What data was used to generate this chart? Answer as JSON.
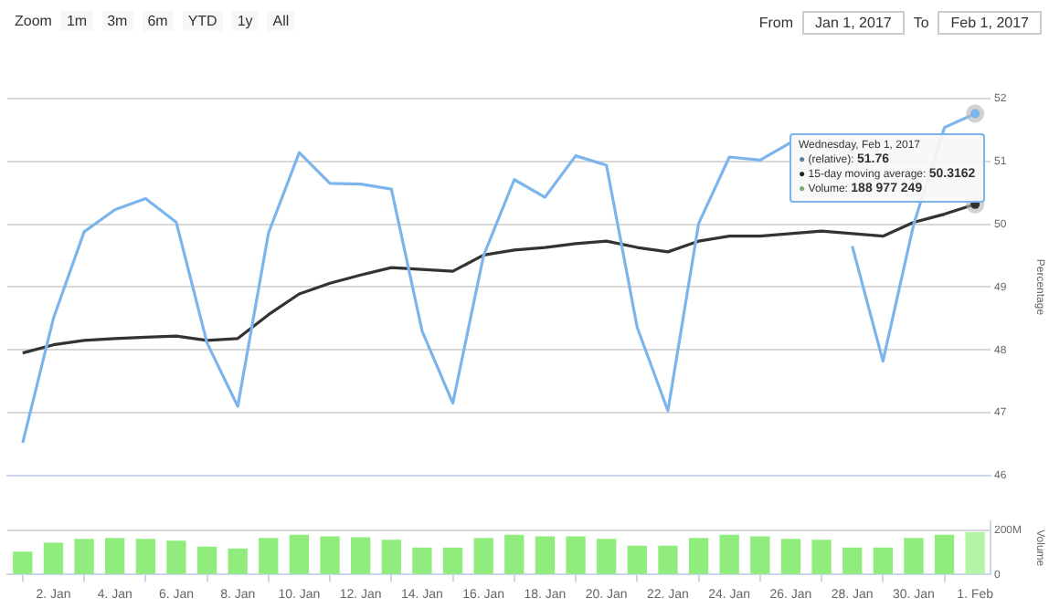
{
  "chart_data": [
    {
      "type": "line",
      "ylabel": "Percentage",
      "x": [
        "2017-01-01",
        "2017-01-02",
        "2017-01-03",
        "2017-01-04",
        "2017-01-05",
        "2017-01-06",
        "2017-01-07",
        "2017-01-08",
        "2017-01-09",
        "2017-01-10",
        "2017-01-11",
        "2017-01-12",
        "2017-01-13",
        "2017-01-14",
        "2017-01-15",
        "2017-01-16",
        "2017-01-17",
        "2017-01-18",
        "2017-01-19",
        "2017-01-20",
        "2017-01-21",
        "2017-01-22",
        "2017-01-23",
        "2017-01-24",
        "2017-01-25",
        "2017-01-26",
        "2017-01-27",
        "2017-01-28",
        "2017-01-29",
        "2017-01-30",
        "2017-01-31",
        "2017-02-01"
      ],
      "series": [
        {
          "color": "#7cb5ec",
          "values": [
            46.52,
            48.5,
            49.88,
            50.23,
            50.41,
            50.03,
            48.11,
            47.1,
            49.86,
            51.14,
            50.65,
            50.64,
            50.56,
            48.3,
            47.15,
            49.5,
            50.71,
            50.43,
            51.09,
            50.94,
            48.36,
            47.03,
            50.01,
            51.07,
            51.02,
            51.3,
            null,
            49.65,
            47.82,
            50.0,
            51.54,
            51.76
          ]
        },
        {
          "color": "#333333",
          "values": [
            47.95,
            48.08,
            48.15,
            48.18,
            48.2,
            48.22,
            48.15,
            48.18,
            48.56,
            48.89,
            49.06,
            49.19,
            49.31,
            49.28,
            49.25,
            49.51,
            49.59,
            49.63,
            49.69,
            49.73,
            49.63,
            49.56,
            49.73,
            49.81,
            49.81,
            49.85,
            49.89,
            49.85,
            49.81,
            50.03,
            50.16,
            50.3162
          ]
        }
      ],
      "xlim": [
        "2016-12-31T12:00",
        "2017-02-01T12:00"
      ],
      "ylim": [
        46,
        52
      ],
      "yticks": [
        46,
        47,
        48,
        49,
        50,
        51,
        52
      ],
      "grid": "y",
      "marker": "none",
      "line_style": "solid",
      "tick_labels": "y",
      "annotations": [
        "Zoom",
        "1m",
        "3m",
        "6m",
        "YTD",
        "1y",
        "All",
        "From",
        "Jan 1, 2017",
        "To",
        "Feb 1, 2017",
        "Wednesday, Feb 1, 2017",
        "● (relative): 51.76",
        "● 15-day moving average: 50.3162"
      ]
    },
    {
      "type": "bar",
      "ylabel": "Volume",
      "x": [
        "2017-01-01",
        "2017-01-02",
        "2017-01-03",
        "2017-01-04",
        "2017-01-05",
        "2017-01-06",
        "2017-01-07",
        "2017-01-08",
        "2017-01-09",
        "2017-01-10",
        "2017-01-11",
        "2017-01-12",
        "2017-01-13",
        "2017-01-14",
        "2017-01-15",
        "2017-01-16",
        "2017-01-17",
        "2017-01-18",
        "2017-01-19",
        "2017-01-20",
        "2017-01-21",
        "2017-01-22",
        "2017-01-23",
        "2017-01-24",
        "2017-01-25",
        "2017-01-26",
        "2017-01-27",
        "2017-01-28",
        "2017-01-29",
        "2017-01-30",
        "2017-01-31",
        "2017-02-01"
      ],
      "colors": [
        "#90ed7d",
        "#90ed7d",
        "#90ed7d",
        "#90ed7d",
        "#90ed7d",
        "#90ed7d",
        "#90ed7d",
        "#90ed7d",
        "#90ed7d",
        "#90ed7d",
        "#90ed7d",
        "#90ed7d",
        "#90ed7d",
        "#90ed7d",
        "#90ed7d",
        "#90ed7d",
        "#90ed7d",
        "#90ed7d",
        "#90ed7d",
        "#90ed7d",
        "#90ed7d",
        "#90ed7d",
        "#90ed7d",
        "#90ed7d",
        "#90ed7d",
        "#90ed7d",
        "#90ed7d",
        "#90ed7d",
        "#90ed7d",
        "#90ed7d",
        "#90ed7d",
        "#b3f5a5"
      ],
      "values": [
        101000000,
        141000000,
        158000000,
        163000000,
        158000000,
        150000000,
        123000000,
        115000000,
        163000000,
        177000000,
        170000000,
        166000000,
        154000000,
        119000000,
        119000000,
        163000000,
        177000000,
        170000000,
        170000000,
        158000000,
        127000000,
        127000000,
        163000000,
        177000000,
        170000000,
        158000000,
        154000000,
        119000000,
        119000000,
        163000000,
        177000000,
        188977249
      ],
      "xlim": [
        "2016-12-31T12:00",
        "2017-02-01T12:00"
      ],
      "xticks": [
        {
          "value": "2017-01-02",
          "label": "2. Jan"
        },
        {
          "value": "2017-01-04",
          "label": "4. Jan"
        },
        {
          "value": "2017-01-06",
          "label": "6. Jan"
        },
        {
          "value": "2017-01-08",
          "label": "8. Jan"
        },
        {
          "value": "2017-01-10",
          "label": "10. Jan"
        },
        {
          "value": "2017-01-12",
          "label": "12. Jan"
        },
        {
          "value": "2017-01-14",
          "label": "14. Jan"
        },
        {
          "value": "2017-01-16",
          "label": "16. Jan"
        },
        {
          "value": "2017-01-18",
          "label": "18. Jan"
        },
        {
          "value": "2017-01-20",
          "label": "20. Jan"
        },
        {
          "value": "2017-01-22",
          "label": "22. Jan"
        },
        {
          "value": "2017-01-24",
          "label": "24. Jan"
        },
        {
          "value": "2017-01-26",
          "label": "26. Jan"
        },
        {
          "value": "2017-01-28",
          "label": "28. Jan"
        },
        {
          "value": "2017-01-30",
          "label": "30. Jan"
        },
        {
          "value": "2017-02-01",
          "label": "1. Feb"
        }
      ],
      "ylim": [
        0,
        240000000
      ],
      "yticks": [
        0,
        {
          "value": 200000000,
          "label": "200M"
        }
      ],
      "grid": "y",
      "annotations": [
        "● Volume: 188 977 249"
      ]
    }
  ]
}
